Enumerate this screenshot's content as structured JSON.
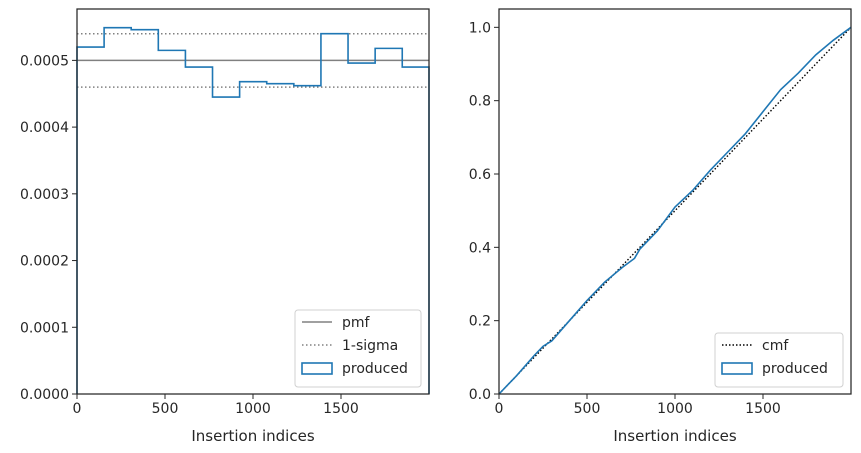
{
  "chart_data": [
    {
      "type": "line",
      "xlabel": "Insertion indices",
      "ylabel": "",
      "xlim": [
        0,
        2000
      ],
      "ylim": [
        0,
        0.000577
      ],
      "xticks": [
        0,
        500,
        1000,
        1500
      ],
      "xtick_labels": [
        "0",
        "500",
        "1000",
        "1500"
      ],
      "yticks": [
        0,
        0.0001,
        0.0002,
        0.0003,
        0.0004,
        0.0005
      ],
      "ytick_labels": [
        "0.0000",
        "0.0001",
        "0.0002",
        "0.0003",
        "0.0004",
        "0.0005"
      ],
      "grid": false,
      "legend_position": "lower right",
      "reference_lines": [
        {
          "name": "pmf",
          "y": 0.0005,
          "style": "solid",
          "color": "#808080"
        },
        {
          "name": "1-sigma",
          "y": 0.00054,
          "style": "dotted",
          "color": "#808080"
        },
        {
          "name": "1-sigma",
          "y": 0.00046,
          "style": "dotted",
          "color": "#808080"
        }
      ],
      "series": [
        {
          "name": "produced",
          "kind": "step-histogram",
          "color": "#1f77b4",
          "bin_edges": [
            0,
            154,
            308,
            462,
            616,
            770,
            924,
            1078,
            1232,
            1386,
            1540,
            1694,
            1848,
            2000
          ],
          "values": [
            0.00052,
            0.000549,
            0.000546,
            0.000515,
            0.00049,
            0.000445,
            0.000468,
            0.000465,
            0.000462,
            0.00054,
            0.000496,
            0.000518,
            0.00049
          ]
        }
      ],
      "legend": [
        "pmf",
        "1-sigma",
        "produced"
      ]
    },
    {
      "type": "line",
      "xlabel": "Insertion indices",
      "ylabel": "",
      "xlim": [
        0,
        2000
      ],
      "ylim": [
        0,
        1.05
      ],
      "xticks": [
        0,
        500,
        1000,
        1500
      ],
      "xtick_labels": [
        "0",
        "500",
        "1000",
        "1500"
      ],
      "yticks": [
        0,
        0.2,
        0.4,
        0.6,
        0.8,
        1.0
      ],
      "ytick_labels": [
        "0.0",
        "0.2",
        "0.4",
        "0.6",
        "0.8",
        "1.0"
      ],
      "grid": false,
      "legend_position": "lower right",
      "series": [
        {
          "name": "cmf",
          "style": "dotted",
          "color": "#000000",
          "x": [
            0,
            2000
          ],
          "y": [
            0,
            1.0
          ]
        },
        {
          "name": "produced",
          "style": "solid",
          "color": "#1f77b4",
          "x": [
            0,
            100,
            200,
            250,
            300,
            400,
            500,
            600,
            700,
            770,
            800,
            900,
            1000,
            1100,
            1200,
            1300,
            1400,
            1500,
            1600,
            1700,
            1800,
            1900,
            2000
          ],
          "y": [
            0,
            0.05,
            0.105,
            0.13,
            0.145,
            0.2,
            0.255,
            0.305,
            0.345,
            0.37,
            0.395,
            0.445,
            0.51,
            0.555,
            0.61,
            0.66,
            0.71,
            0.77,
            0.83,
            0.875,
            0.925,
            0.965,
            1.0
          ]
        }
      ],
      "legend": [
        "cmf",
        "produced"
      ]
    }
  ]
}
